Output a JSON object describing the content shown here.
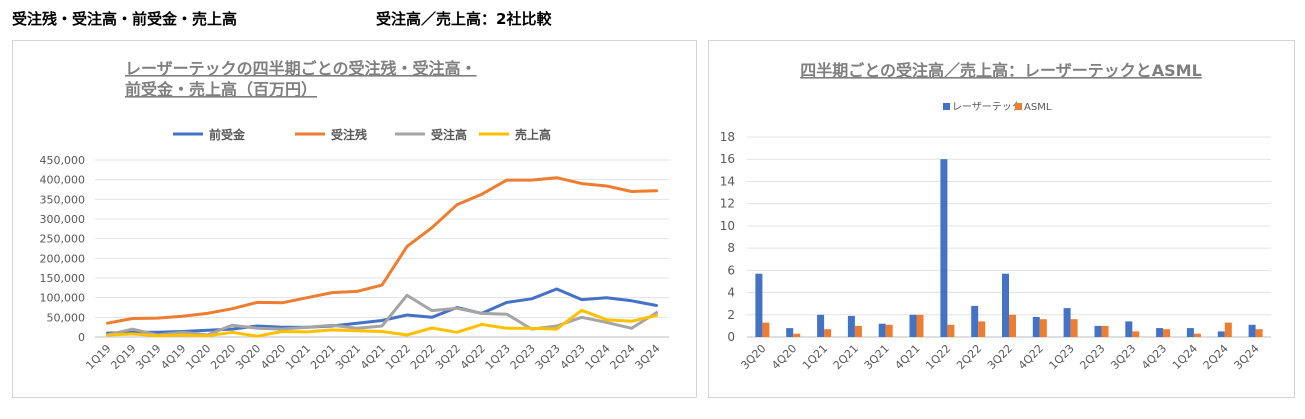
{
  "headings": {
    "left": "受注残・受注高・前受金・売上高",
    "right": "受注高／売上高：2社比較"
  },
  "chart_data": [
    {
      "type": "line",
      "title": [
        "レーザーテックの四半期ごとの受注残・受注高・",
        "前受金・売上高（百万円）"
      ],
      "categories": [
        "1Q19",
        "2Q19",
        "3Q19",
        "4Q19",
        "1Q20",
        "2Q20",
        "3Q20",
        "4Q20",
        "1Q21",
        "2Q21",
        "3Q21",
        "4Q21",
        "1Q22",
        "2Q22",
        "3Q22",
        "4Q22",
        "1Q23",
        "2Q23",
        "3Q23",
        "4Q23",
        "1Q24",
        "2Q24",
        "3Q24"
      ],
      "ylim": [
        0,
        450000
      ],
      "yticks": [
        "0",
        "50,000",
        "100,000",
        "150,000",
        "200,000",
        "250,000",
        "300,000",
        "350,000",
        "400,000",
        "450,000"
      ],
      "legend_position": "top",
      "grid": true,
      "series": [
        {
          "name": "前受金",
          "color": "#4472C4",
          "values": [
            10000,
            12000,
            12000,
            14000,
            17000,
            20000,
            28000,
            25000,
            25000,
            28000,
            35000,
            42000,
            56000,
            50000,
            75000,
            60000,
            88000,
            97000,
            122000,
            95000,
            100000,
            92000,
            80000
          ]
        },
        {
          "name": "受注残",
          "color": "#ED7D31",
          "values": [
            35000,
            47000,
            48000,
            53000,
            60000,
            72000,
            88000,
            87000,
            100000,
            113000,
            116000,
            132000,
            230000,
            278000,
            336000,
            363000,
            399000,
            399000,
            405000,
            390000,
            384000,
            370000,
            372000
          ]
        },
        {
          "name": "受注高",
          "color": "#A5A5A5",
          "values": [
            5000,
            20000,
            5000,
            12000,
            5000,
            30000,
            22000,
            20000,
            25000,
            30000,
            22000,
            28000,
            106000,
            67000,
            73000,
            60000,
            58000,
            20000,
            28000,
            50000,
            37000,
            22000,
            62000
          ]
        },
        {
          "name": "売上高",
          "color": "#FFC000",
          "values": [
            5000,
            8000,
            3000,
            5000,
            3000,
            12000,
            2000,
            14000,
            13000,
            18000,
            16000,
            14000,
            5000,
            23000,
            12000,
            32000,
            22000,
            22000,
            20000,
            68000,
            44000,
            40000,
            55000
          ]
        }
      ]
    },
    {
      "type": "bar",
      "title": "四半期ごとの受注高／売上高：レーザーテックとASML",
      "categories": [
        "3Q20",
        "4Q20",
        "1Q21",
        "2Q21",
        "3Q21",
        "4Q21",
        "1Q22",
        "2Q22",
        "3Q22",
        "4Q22",
        "1Q23",
        "2Q23",
        "3Q23",
        "4Q23",
        "1Q24",
        "2Q24",
        "3Q24"
      ],
      "ylim": [
        0,
        18
      ],
      "yticks": [
        "0",
        "2",
        "4",
        "6",
        "8",
        "10",
        "12",
        "14",
        "16",
        "18"
      ],
      "legend_position": "top",
      "grid": true,
      "series": [
        {
          "name": "レーザーテック",
          "color": "#4472C4",
          "values": [
            5.7,
            0.8,
            2.0,
            1.9,
            1.2,
            2.0,
            16.0,
            2.8,
            5.7,
            1.8,
            2.6,
            1.0,
            1.4,
            0.8,
            0.8,
            0.5,
            1.1
          ]
        },
        {
          "name": "ASML",
          "color": "#ED7D31",
          "values": [
            1.3,
            0.3,
            0.7,
            1.0,
            1.1,
            2.0,
            1.1,
            1.4,
            2.0,
            1.6,
            1.6,
            1.0,
            0.5,
            0.7,
            0.3,
            1.3,
            0.7
          ]
        }
      ]
    }
  ]
}
